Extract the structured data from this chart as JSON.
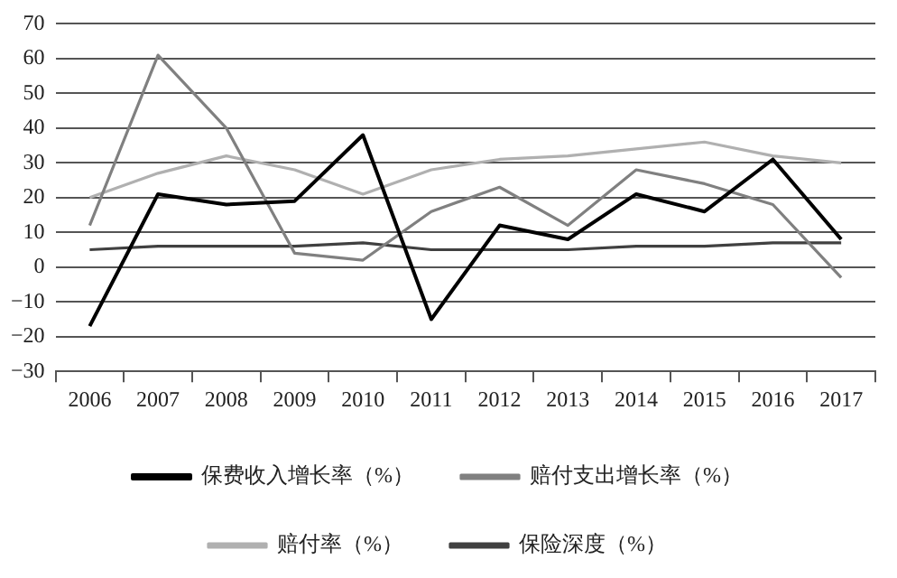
{
  "chart_data": {
    "type": "line",
    "categories": [
      "2006",
      "2007",
      "2008",
      "2009",
      "2010",
      "2011",
      "2012",
      "2013",
      "2014",
      "2015",
      "2016",
      "2017"
    ],
    "series": [
      {
        "name": "保费收入增长率（%）",
        "color": "#000000",
        "values": [
          -17,
          21,
          18,
          19,
          38,
          -15,
          12,
          8,
          21,
          16,
          31,
          8
        ]
      },
      {
        "name": "赔付支出增长率（%）",
        "color": "#808080",
        "values": [
          12,
          61,
          40,
          4,
          2,
          16,
          23,
          12,
          28,
          24,
          18,
          -3
        ]
      },
      {
        "name": "赔付率（%）",
        "color": "#b0b0b0",
        "values": [
          20,
          27,
          32,
          28,
          21,
          28,
          31,
          32,
          34,
          36,
          32,
          30
        ]
      },
      {
        "name": "保险深度（%）",
        "color": "#404040",
        "values": [
          5,
          6,
          6,
          6,
          7,
          5,
          5,
          5,
          6,
          6,
          7,
          7
        ]
      }
    ],
    "ylim": [
      -30,
      70
    ],
    "yticks": [
      -30,
      -20,
      -10,
      0,
      10,
      20,
      30,
      40,
      50,
      60,
      70
    ],
    "grid": "y",
    "legend": "bottom",
    "marker": "none",
    "line_style": "solid"
  }
}
